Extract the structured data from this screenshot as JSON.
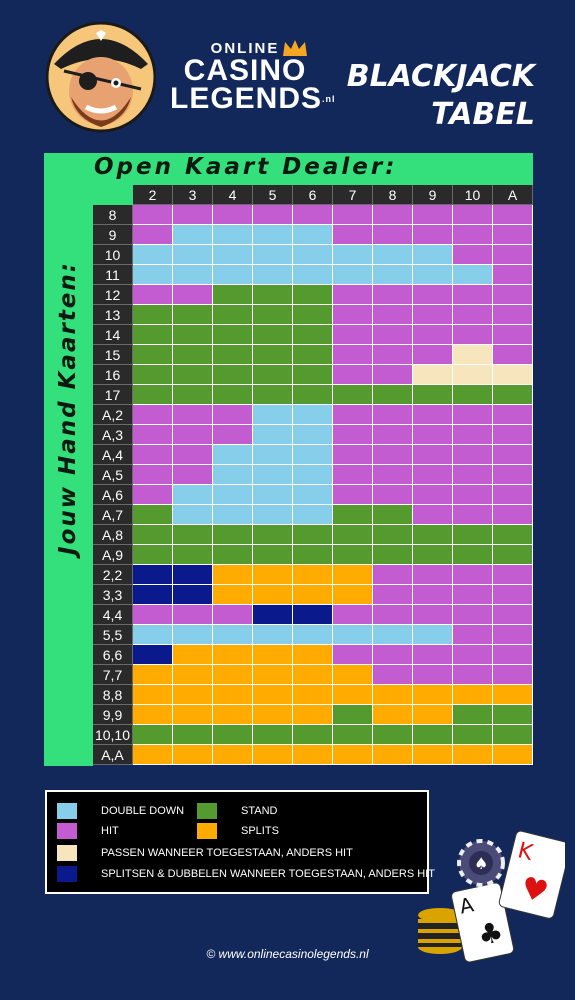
{
  "brand": {
    "online": "ONLINE",
    "casino": "CASINO",
    "legends": "LEGENDS",
    "nl": ".nl"
  },
  "title": {
    "line1": "Blackjack",
    "line2": "Tabel"
  },
  "dealer_header": "Open Kaart Dealer:",
  "hand_header": "Jouw Hand Kaarten:",
  "footer": "© www.onlinecasinolegends.nl",
  "colors": {
    "D": "#87ceeb",
    "H": "#c35bd1",
    "S": "#559a2e",
    "P": "#ffab00",
    "R": "#f7e6bd",
    "X": "#0a1a8c"
  },
  "icons": [
    "pirate-mascot-icon",
    "crown-icon",
    "poker-chip-icon",
    "king-of-hearts-card-icon",
    "ace-of-clubs-card-icon",
    "chip-stack-icon"
  ],
  "chart_data": {
    "type": "table",
    "columns": [
      "2",
      "3",
      "4",
      "5",
      "6",
      "7",
      "8",
      "9",
      "10",
      "A"
    ],
    "rows": [
      {
        "hand": "8",
        "actions": [
          "H",
          "H",
          "H",
          "H",
          "H",
          "H",
          "H",
          "H",
          "H",
          "H"
        ]
      },
      {
        "hand": "9",
        "actions": [
          "H",
          "D",
          "D",
          "D",
          "D",
          "H",
          "H",
          "H",
          "H",
          "H"
        ]
      },
      {
        "hand": "10",
        "actions": [
          "D",
          "D",
          "D",
          "D",
          "D",
          "D",
          "D",
          "D",
          "H",
          "H"
        ]
      },
      {
        "hand": "11",
        "actions": [
          "D",
          "D",
          "D",
          "D",
          "D",
          "D",
          "D",
          "D",
          "D",
          "H"
        ]
      },
      {
        "hand": "12",
        "actions": [
          "H",
          "H",
          "S",
          "S",
          "S",
          "H",
          "H",
          "H",
          "H",
          "H"
        ]
      },
      {
        "hand": "13",
        "actions": [
          "S",
          "S",
          "S",
          "S",
          "S",
          "H",
          "H",
          "H",
          "H",
          "H"
        ]
      },
      {
        "hand": "14",
        "actions": [
          "S",
          "S",
          "S",
          "S",
          "S",
          "H",
          "H",
          "H",
          "H",
          "H"
        ]
      },
      {
        "hand": "15",
        "actions": [
          "S",
          "S",
          "S",
          "S",
          "S",
          "H",
          "H",
          "H",
          "R",
          "H"
        ]
      },
      {
        "hand": "16",
        "actions": [
          "S",
          "S",
          "S",
          "S",
          "S",
          "H",
          "H",
          "R",
          "R",
          "R"
        ]
      },
      {
        "hand": "17",
        "actions": [
          "S",
          "S",
          "S",
          "S",
          "S",
          "S",
          "S",
          "S",
          "S",
          "S"
        ]
      },
      {
        "hand": "A,2",
        "actions": [
          "H",
          "H",
          "H",
          "D",
          "D",
          "H",
          "H",
          "H",
          "H",
          "H"
        ]
      },
      {
        "hand": "A,3",
        "actions": [
          "H",
          "H",
          "H",
          "D",
          "D",
          "H",
          "H",
          "H",
          "H",
          "H"
        ]
      },
      {
        "hand": "A,4",
        "actions": [
          "H",
          "H",
          "D",
          "D",
          "D",
          "H",
          "H",
          "H",
          "H",
          "H"
        ]
      },
      {
        "hand": "A,5",
        "actions": [
          "H",
          "H",
          "D",
          "D",
          "D",
          "H",
          "H",
          "H",
          "H",
          "H"
        ]
      },
      {
        "hand": "A,6",
        "actions": [
          "H",
          "D",
          "D",
          "D",
          "D",
          "H",
          "H",
          "H",
          "H",
          "H"
        ]
      },
      {
        "hand": "A,7",
        "actions": [
          "S",
          "D",
          "D",
          "D",
          "D",
          "S",
          "S",
          "H",
          "H",
          "H"
        ]
      },
      {
        "hand": "A,8",
        "actions": [
          "S",
          "S",
          "S",
          "S",
          "S",
          "S",
          "S",
          "S",
          "S",
          "S"
        ]
      },
      {
        "hand": "A,9",
        "actions": [
          "S",
          "S",
          "S",
          "S",
          "S",
          "S",
          "S",
          "S",
          "S",
          "S"
        ]
      },
      {
        "hand": "2,2",
        "actions": [
          "X",
          "X",
          "P",
          "P",
          "P",
          "P",
          "H",
          "H",
          "H",
          "H"
        ]
      },
      {
        "hand": "3,3",
        "actions": [
          "X",
          "X",
          "P",
          "P",
          "P",
          "P",
          "H",
          "H",
          "H",
          "H"
        ]
      },
      {
        "hand": "4,4",
        "actions": [
          "H",
          "H",
          "H",
          "X",
          "X",
          "H",
          "H",
          "H",
          "H",
          "H"
        ]
      },
      {
        "hand": "5,5",
        "actions": [
          "D",
          "D",
          "D",
          "D",
          "D",
          "D",
          "D",
          "D",
          "H",
          "H"
        ]
      },
      {
        "hand": "6,6",
        "actions": [
          "X",
          "P",
          "P",
          "P",
          "P",
          "H",
          "H",
          "H",
          "H",
          "H"
        ]
      },
      {
        "hand": "7,7",
        "actions": [
          "P",
          "P",
          "P",
          "P",
          "P",
          "P",
          "H",
          "H",
          "H",
          "H"
        ]
      },
      {
        "hand": "8,8",
        "actions": [
          "P",
          "P",
          "P",
          "P",
          "P",
          "P",
          "P",
          "P",
          "P",
          "P"
        ]
      },
      {
        "hand": "9,9",
        "actions": [
          "P",
          "P",
          "P",
          "P",
          "P",
          "S",
          "P",
          "P",
          "S",
          "S"
        ]
      },
      {
        "hand": "10,10",
        "actions": [
          "S",
          "S",
          "S",
          "S",
          "S",
          "S",
          "S",
          "S",
          "S",
          "S"
        ]
      },
      {
        "hand": "A,A",
        "actions": [
          "P",
          "P",
          "P",
          "P",
          "P",
          "P",
          "P",
          "P",
          "P",
          "P"
        ]
      }
    ],
    "legend": [
      {
        "key": "D",
        "label": "DOUBLE DOWN"
      },
      {
        "key": "S",
        "label": "STAND"
      },
      {
        "key": "H",
        "label": "HIT"
      },
      {
        "key": "P",
        "label": "SPLITS"
      },
      {
        "key": "R",
        "label": "PASSEN WANNEER TOEGESTAAN, ANDERS HIT"
      },
      {
        "key": "X",
        "label": "SPLITSEN & DUBBELEN WANNEER  TOEGESTAAN, ANDERS HIT"
      }
    ]
  }
}
